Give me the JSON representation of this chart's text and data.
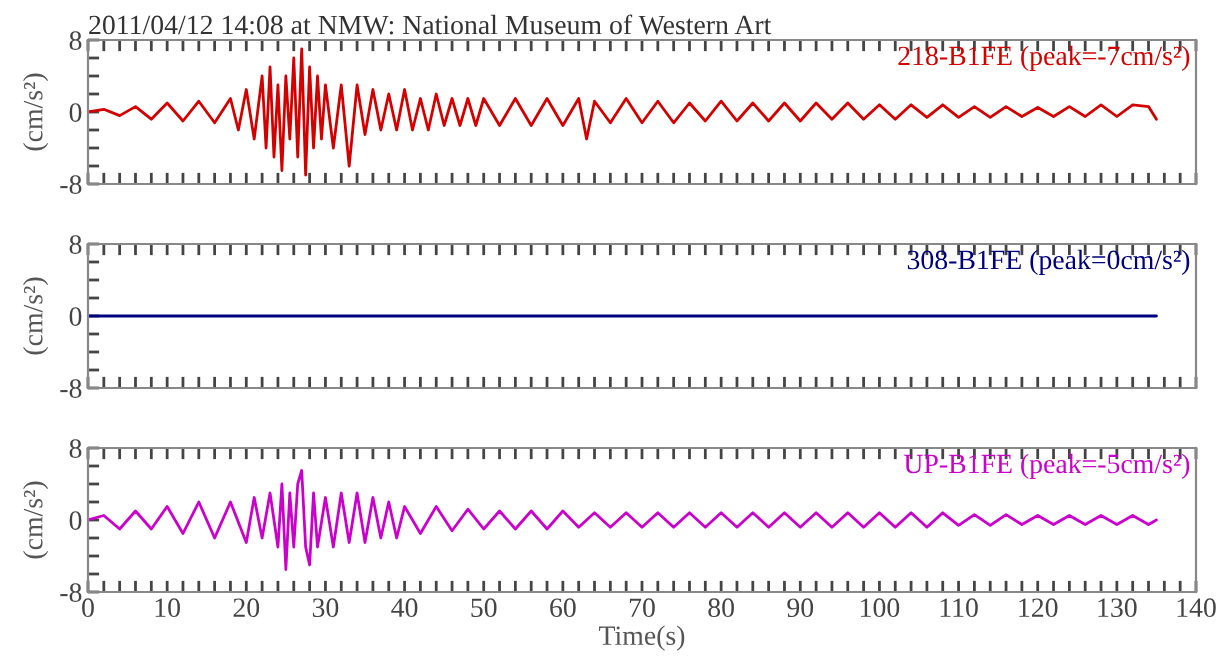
{
  "chart_data": [
    {
      "type": "line",
      "title": "2011/04/12 14:08 at NMW: National Museum of Western Art",
      "ylabel": "(cm/s²)",
      "tick_labels": "y",
      "x": [
        0,
        2,
        4,
        6,
        8,
        10,
        12,
        14,
        16,
        18,
        19,
        20,
        21,
        22,
        22.5,
        23,
        23.5,
        24,
        24.5,
        25,
        25.5,
        26,
        26.5,
        27,
        27.5,
        28,
        28.5,
        29,
        29.5,
        30,
        31,
        32,
        33,
        34,
        35,
        36,
        37,
        38,
        39,
        40,
        41,
        42,
        43,
        44,
        45,
        46,
        47,
        48,
        49,
        50,
        52,
        54,
        56,
        58,
        60,
        62,
        63,
        64,
        66,
        68,
        70,
        72,
        74,
        76,
        78,
        80,
        82,
        84,
        86,
        88,
        90,
        92,
        94,
        96,
        98,
        100,
        102,
        104,
        106,
        108,
        110,
        112,
        114,
        116,
        118,
        120,
        122,
        124,
        126,
        128,
        130,
        132,
        134,
        135
      ],
      "series": [
        {
          "name": "218-B1FE (peak=-7cm/s²)",
          "color": "#d40000",
          "values": [
            0,
            0.3,
            -0.4,
            0.6,
            -0.8,
            1,
            -1,
            1.2,
            -1.2,
            1.5,
            -2,
            2.5,
            -3,
            4,
            -4,
            5,
            -5,
            3,
            -6.5,
            4,
            -3,
            6,
            -5,
            7,
            -7,
            5,
            -4,
            4,
            -3,
            3,
            -4,
            3,
            -6,
            3,
            -2.5,
            2.5,
            -2,
            2,
            -2,
            2.5,
            -2,
            1.5,
            -2,
            2,
            -1.5,
            1.5,
            -1.5,
            1.5,
            -1.5,
            1.5,
            -1.5,
            1.5,
            -1.5,
            1.5,
            -1.5,
            1.5,
            -3,
            1.2,
            -1.2,
            1.5,
            -1.2,
            1.2,
            -1.2,
            1,
            -1,
            1.2,
            -1,
            1,
            -1,
            1,
            -1,
            1,
            -0.8,
            1,
            -0.8,
            0.8,
            -0.8,
            0.8,
            -0.6,
            0.8,
            -0.6,
            0.6,
            -0.6,
            0.6,
            -0.5,
            0.5,
            -0.5,
            0.6,
            -0.5,
            0.8,
            -0.5,
            0.8,
            0.6,
            -0.8
          ]
        }
      ],
      "xlim": [
        0,
        140
      ],
      "ylim": [
        -8,
        8
      ],
      "xticks": [
        0,
        {
          "value": 2,
          "label": null
        },
        {
          "value": 4,
          "label": null
        },
        {
          "value": 6,
          "label": null
        },
        {
          "value": 8,
          "label": null
        },
        10,
        {
          "value": 12,
          "label": null
        },
        {
          "value": 14,
          "label": null
        },
        {
          "value": 16,
          "label": null
        },
        {
          "value": 18,
          "label": null
        },
        20,
        {
          "value": 22,
          "label": null
        },
        {
          "value": 24,
          "label": null
        },
        {
          "value": 26,
          "label": null
        },
        {
          "value": 28,
          "label": null
        },
        30,
        {
          "value": 32,
          "label": null
        },
        {
          "value": 34,
          "label": null
        },
        {
          "value": 36,
          "label": null
        },
        {
          "value": 38,
          "label": null
        },
        40,
        {
          "value": 42,
          "label": null
        },
        {
          "value": 44,
          "label": null
        },
        {
          "value": 46,
          "label": null
        },
        {
          "value": 48,
          "label": null
        },
        50,
        {
          "value": 52,
          "label": null
        },
        {
          "value": 54,
          "label": null
        },
        {
          "value": 56,
          "label": null
        },
        {
          "value": 58,
          "label": null
        },
        60,
        {
          "value": 62,
          "label": null
        },
        {
          "value": 64,
          "label": null
        },
        {
          "value": 66,
          "label": null
        },
        {
          "value": 68,
          "label": null
        },
        70,
        {
          "value": 72,
          "label": null
        },
        {
          "value": 74,
          "label": null
        },
        {
          "value": 76,
          "label": null
        },
        {
          "value": 78,
          "label": null
        },
        80,
        {
          "value": 82,
          "label": null
        },
        {
          "value": 84,
          "label": null
        },
        {
          "value": 86,
          "label": null
        },
        {
          "value": 88,
          "label": null
        },
        90,
        {
          "value": 92,
          "label": null
        },
        {
          "value": 94,
          "label": null
        },
        {
          "value": 96,
          "label": null
        },
        {
          "value": 98,
          "label": null
        },
        100,
        {
          "value": 102,
          "label": null
        },
        {
          "value": 104,
          "label": null
        },
        {
          "value": 106,
          "label": null
        },
        {
          "value": 108,
          "label": null
        },
        110,
        {
          "value": 112,
          "label": null
        },
        {
          "value": 114,
          "label": null
        },
        {
          "value": 116,
          "label": null
        },
        {
          "value": 118,
          "label": null
        },
        120,
        {
          "value": 122,
          "label": null
        },
        {
          "value": 124,
          "label": null
        },
        {
          "value": 126,
          "label": null
        },
        {
          "value": 128,
          "label": null
        },
        130,
        {
          "value": 132,
          "label": null
        },
        {
          "value": 134,
          "label": null
        },
        {
          "value": 136,
          "label": null
        },
        {
          "value": 138,
          "label": null
        },
        140
      ],
      "yticks": [
        -8,
        {
          "value": -6,
          "label": null
        },
        {
          "value": -4,
          "label": null
        },
        {
          "value": -2,
          "label": null
        },
        0,
        {
          "value": 2,
          "label": null
        },
        {
          "value": 4,
          "label": null
        },
        {
          "value": 6,
          "label": null
        },
        8
      ]
    },
    {
      "type": "line",
      "ylabel": "(cm/s²)",
      "tick_labels": "y",
      "x": [
        0,
        10,
        20,
        30,
        40,
        60,
        80,
        100,
        120,
        135
      ],
      "series": [
        {
          "name": "308-B1FE (peak=0cm/s²)",
          "color": "#00007f",
          "values": [
            0,
            0,
            0,
            0,
            0,
            0,
            0,
            0,
            0,
            0
          ]
        }
      ],
      "xlim": [
        0,
        140
      ],
      "ylim": [
        -8,
        8
      ],
      "xticks": [
        0,
        {
          "value": 2,
          "label": null
        },
        {
          "value": 4,
          "label": null
        },
        {
          "value": 6,
          "label": null
        },
        {
          "value": 8,
          "label": null
        },
        10,
        {
          "value": 12,
          "label": null
        },
        {
          "value": 14,
          "label": null
        },
        {
          "value": 16,
          "label": null
        },
        {
          "value": 18,
          "label": null
        },
        20,
        {
          "value": 22,
          "label": null
        },
        {
          "value": 24,
          "label": null
        },
        {
          "value": 26,
          "label": null
        },
        {
          "value": 28,
          "label": null
        },
        30,
        {
          "value": 32,
          "label": null
        },
        {
          "value": 34,
          "label": null
        },
        {
          "value": 36,
          "label": null
        },
        {
          "value": 38,
          "label": null
        },
        40,
        {
          "value": 42,
          "label": null
        },
        {
          "value": 44,
          "label": null
        },
        {
          "value": 46,
          "label": null
        },
        {
          "value": 48,
          "label": null
        },
        50,
        {
          "value": 52,
          "label": null
        },
        {
          "value": 54,
          "label": null
        },
        {
          "value": 56,
          "label": null
        },
        {
          "value": 58,
          "label": null
        },
        60,
        {
          "value": 62,
          "label": null
        },
        {
          "value": 64,
          "label": null
        },
        {
          "value": 66,
          "label": null
        },
        {
          "value": 68,
          "label": null
        },
        70,
        {
          "value": 72,
          "label": null
        },
        {
          "value": 74,
          "label": null
        },
        {
          "value": 76,
          "label": null
        },
        {
          "value": 78,
          "label": null
        },
        80,
        {
          "value": 82,
          "label": null
        },
        {
          "value": 84,
          "label": null
        },
        {
          "value": 86,
          "label": null
        },
        {
          "value": 88,
          "label": null
        },
        90,
        {
          "value": 92,
          "label": null
        },
        {
          "value": 94,
          "label": null
        },
        {
          "value": 96,
          "label": null
        },
        {
          "value": 98,
          "label": null
        },
        100,
        {
          "value": 102,
          "label": null
        },
        {
          "value": 104,
          "label": null
        },
        {
          "value": 106,
          "label": null
        },
        {
          "value": 108,
          "label": null
        },
        110,
        {
          "value": 112,
          "label": null
        },
        {
          "value": 114,
          "label": null
        },
        {
          "value": 116,
          "label": null
        },
        {
          "value": 118,
          "label": null
        },
        120,
        {
          "value": 122,
          "label": null
        },
        {
          "value": 124,
          "label": null
        },
        {
          "value": 126,
          "label": null
        },
        {
          "value": 128,
          "label": null
        },
        130,
        {
          "value": 132,
          "label": null
        },
        {
          "value": 134,
          "label": null
        },
        {
          "value": 136,
          "label": null
        },
        {
          "value": 138,
          "label": null
        },
        140
      ],
      "yticks": [
        -8,
        {
          "value": -6,
          "label": null
        },
        {
          "value": -4,
          "label": null
        },
        {
          "value": -2,
          "label": null
        },
        0,
        {
          "value": 2,
          "label": null
        },
        {
          "value": 4,
          "label": null
        },
        {
          "value": 6,
          "label": null
        },
        8
      ]
    },
    {
      "type": "line",
      "ylabel": "(cm/s²)",
      "xlabel": "Time(s)",
      "x": [
        0,
        2,
        4,
        6,
        8,
        10,
        12,
        14,
        16,
        18,
        20,
        21,
        22,
        23,
        24,
        24.5,
        25,
        25.5,
        26,
        26.5,
        27,
        27.5,
        28,
        28.5,
        29,
        30,
        31,
        32,
        33,
        34,
        35,
        36,
        37,
        38,
        39,
        40,
        42,
        44,
        46,
        48,
        50,
        52,
        54,
        56,
        58,
        60,
        62,
        64,
        66,
        68,
        70,
        72,
        74,
        76,
        78,
        80,
        82,
        84,
        86,
        88,
        90,
        92,
        94,
        96,
        98,
        100,
        102,
        104,
        106,
        108,
        110,
        112,
        114,
        116,
        118,
        120,
        122,
        124,
        126,
        128,
        130,
        132,
        134,
        135
      ],
      "series": [
        {
          "name": "UP-B1FE (peak=-5cm/s²)",
          "color": "#cc00cc",
          "values": [
            0,
            0.5,
            -1,
            1,
            -1,
            1.5,
            -1.5,
            2,
            -2,
            2,
            -2.5,
            2.5,
            -2,
            3,
            -3,
            4,
            -5.5,
            3,
            -3,
            4,
            5.5,
            -3,
            -5,
            3,
            -3,
            2.5,
            -3,
            3,
            -2.5,
            3,
            -2.5,
            2.5,
            -2,
            2,
            -2,
            1.5,
            -1.5,
            1.5,
            -1.2,
            1.2,
            -1,
            1,
            -1,
            1,
            -1,
            1,
            -0.8,
            0.8,
            -0.8,
            0.8,
            -0.8,
            0.8,
            -0.8,
            0.8,
            -0.8,
            0.8,
            -0.8,
            0.8,
            -0.8,
            0.8,
            -0.8,
            0.8,
            -0.8,
            0.8,
            -0.8,
            0.8,
            -0.8,
            0.8,
            -0.8,
            0.8,
            -0.6,
            0.6,
            -0.6,
            0.6,
            -0.5,
            0.5,
            -0.5,
            0.5,
            -0.5,
            0.5,
            -0.5,
            0.5,
            -0.5,
            0
          ]
        }
      ],
      "xlim": [
        0,
        140
      ],
      "ylim": [
        -8,
        8
      ],
      "xticks": [
        0,
        {
          "value": 2,
          "label": null
        },
        {
          "value": 4,
          "label": null
        },
        {
          "value": 6,
          "label": null
        },
        {
          "value": 8,
          "label": null
        },
        10,
        {
          "value": 12,
          "label": null
        },
        {
          "value": 14,
          "label": null
        },
        {
          "value": 16,
          "label": null
        },
        {
          "value": 18,
          "label": null
        },
        20,
        {
          "value": 22,
          "label": null
        },
        {
          "value": 24,
          "label": null
        },
        {
          "value": 26,
          "label": null
        },
        {
          "value": 28,
          "label": null
        },
        30,
        {
          "value": 32,
          "label": null
        },
        {
          "value": 34,
          "label": null
        },
        {
          "value": 36,
          "label": null
        },
        {
          "value": 38,
          "label": null
        },
        40,
        {
          "value": 42,
          "label": null
        },
        {
          "value": 44,
          "label": null
        },
        {
          "value": 46,
          "label": null
        },
        {
          "value": 48,
          "label": null
        },
        50,
        {
          "value": 52,
          "label": null
        },
        {
          "value": 54,
          "label": null
        },
        {
          "value": 56,
          "label": null
        },
        {
          "value": 58,
          "label": null
        },
        60,
        {
          "value": 62,
          "label": null
        },
        {
          "value": 64,
          "label": null
        },
        {
          "value": 66,
          "label": null
        },
        {
          "value": 68,
          "label": null
        },
        70,
        {
          "value": 72,
          "label": null
        },
        {
          "value": 74,
          "label": null
        },
        {
          "value": 76,
          "label": null
        },
        {
          "value": 78,
          "label": null
        },
        80,
        {
          "value": 82,
          "label": null
        },
        {
          "value": 84,
          "label": null
        },
        {
          "value": 86,
          "label": null
        },
        {
          "value": 88,
          "label": null
        },
        90,
        {
          "value": 92,
          "label": null
        },
        {
          "value": 94,
          "label": null
        },
        {
          "value": 96,
          "label": null
        },
        {
          "value": 98,
          "label": null
        },
        100,
        {
          "value": 102,
          "label": null
        },
        {
          "value": 104,
          "label": null
        },
        {
          "value": 106,
          "label": null
        },
        {
          "value": 108,
          "label": null
        },
        110,
        {
          "value": 112,
          "label": null
        },
        {
          "value": 114,
          "label": null
        },
        {
          "value": 116,
          "label": null
        },
        {
          "value": 118,
          "label": null
        },
        120,
        {
          "value": 122,
          "label": null
        },
        {
          "value": 124,
          "label": null
        },
        {
          "value": 126,
          "label": null
        },
        {
          "value": 128,
          "label": null
        },
        130,
        {
          "value": 132,
          "label": null
        },
        {
          "value": 134,
          "label": null
        },
        {
          "value": 136,
          "label": null
        },
        {
          "value": 138,
          "label": null
        },
        140
      ],
      "yticks": [
        -8,
        {
          "value": -6,
          "label": null
        },
        {
          "value": -4,
          "label": null
        },
        {
          "value": -2,
          "label": null
        },
        0,
        {
          "value": 2,
          "label": null
        },
        {
          "value": 4,
          "label": null
        },
        {
          "value": 6,
          "label": null
        },
        8
      ]
    }
  ]
}
